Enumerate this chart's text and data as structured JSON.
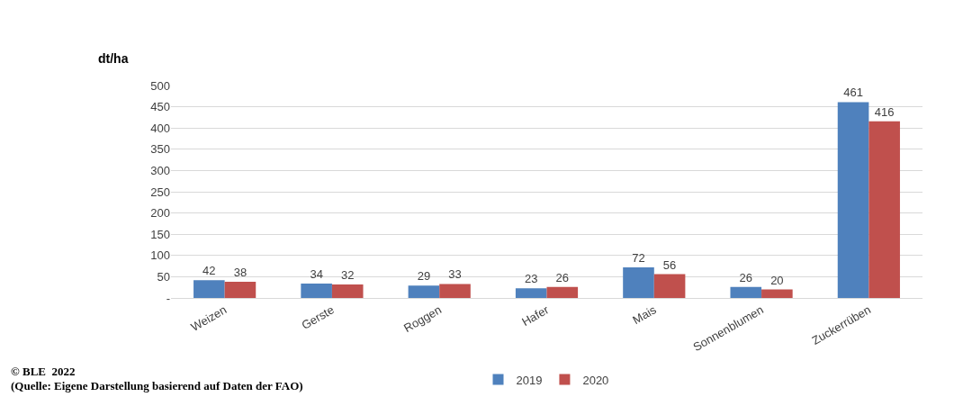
{
  "chart_data": {
    "type": "bar",
    "ylabel": "dt/ha",
    "categories": [
      "Weizen",
      "Gerste",
      "Roggen",
      "Hafer",
      "Mais",
      "Sonnenblumen",
      "Zuckerrüben"
    ],
    "series": [
      {
        "name": "2019",
        "color": "#4f81bd",
        "values": [
          42,
          34,
          29,
          23,
          72,
          26,
          461
        ]
      },
      {
        "name": "2020",
        "color": "#c0504d",
        "values": [
          38,
          32,
          33,
          26,
          56,
          20,
          416
        ]
      }
    ],
    "ylim": [
      0,
      500
    ],
    "yticks": [
      {
        "value": 0,
        "label": "-"
      },
      50,
      100,
      150,
      200,
      250,
      300,
      350,
      400,
      450,
      500
    ],
    "grid": "y",
    "legend": "bottom",
    "data_labels": true,
    "annotations": [
      "© BLE  2022",
      "(Quelle: Eigene Darstellung basierend auf Daten der FAO)"
    ]
  }
}
